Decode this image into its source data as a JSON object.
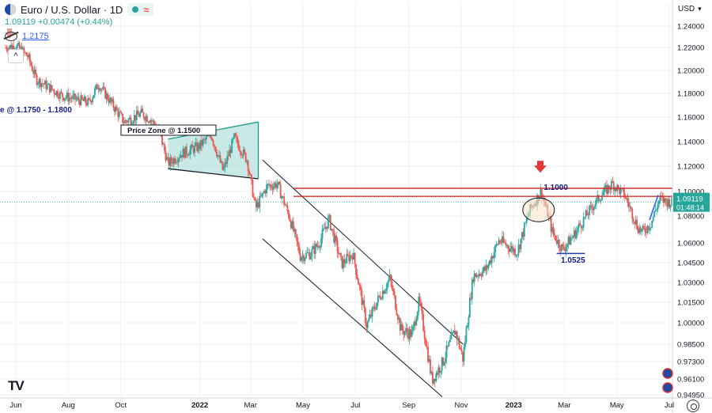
{
  "header": {
    "symbol_title": "Euro / U.S. Dollar · 1D",
    "price_line": "1.09119 +0.00474 (+0.44%)",
    "indicator_value": "1.2175",
    "currency_menu": "USD",
    "collapse_glyph": "^",
    "logo_text": "TV"
  },
  "colors": {
    "up": "#26a69a",
    "down": "#ef5350",
    "channel": "#131722",
    "zone_fill": "#b2dfdb",
    "resistance": "#d32f2f",
    "label_blue": "#131e8c",
    "last_price_bg": "#26a69a"
  },
  "chart_data": {
    "type": "candlestick",
    "title": "Euro / U.S. Dollar · 1D",
    "y_axis": {
      "ticks": [
        "1.24000",
        "1.22000",
        "1.20000",
        "1.18000",
        "1.16000",
        "1.14000",
        "1.12000",
        "1.10000",
        "1.08000",
        "1.06000",
        "1.04500",
        "1.03000",
        "1.01500",
        "1.00000",
        "0.98500",
        "0.97300",
        "0.96100",
        "0.94950"
      ],
      "tick_values": [
        1.24,
        1.22,
        1.2,
        1.18,
        1.16,
        1.14,
        1.12,
        1.1,
        1.08,
        1.06,
        1.045,
        1.03,
        1.015,
        1.0,
        0.985,
        0.973,
        0.961,
        0.9495
      ],
      "ylim": [
        0.945,
        1.25
      ]
    },
    "x_axis": {
      "ticks": [
        "Jun",
        "Aug",
        "Oct",
        "2022",
        "Mar",
        "May",
        "Jul",
        "Sep",
        "Nov",
        "2023",
        "Mar",
        "May",
        "Jul"
      ],
      "tick_dates": [
        "2021-06-01",
        "2021-08-01",
        "2021-10-01",
        "2022-01-01",
        "2022-03-01",
        "2022-05-01",
        "2022-07-01",
        "2022-09-01",
        "2022-11-01",
        "2023-01-01",
        "2023-03-01",
        "2023-05-01",
        "2023-07-01"
      ]
    },
    "price_path": [
      [
        "2021-05-20",
        1.22
      ],
      [
        "2021-06-01",
        1.222
      ],
      [
        "2021-06-15",
        1.212
      ],
      [
        "2021-06-25",
        1.192
      ],
      [
        "2021-07-10",
        1.185
      ],
      [
        "2021-07-25",
        1.178
      ],
      [
        "2021-08-10",
        1.175
      ],
      [
        "2021-08-25",
        1.172
      ],
      [
        "2021-09-05",
        1.188
      ],
      [
        "2021-09-20",
        1.172
      ],
      [
        "2021-10-05",
        1.156
      ],
      [
        "2021-10-25",
        1.163
      ],
      [
        "2021-11-05",
        1.158
      ],
      [
        "2021-11-15",
        1.148
      ],
      [
        "2021-11-25",
        1.122
      ],
      [
        "2021-12-10",
        1.13
      ],
      [
        "2021-12-31",
        1.136
      ],
      [
        "2022-01-14",
        1.146
      ],
      [
        "2022-01-28",
        1.116
      ],
      [
        "2022-02-10",
        1.143
      ],
      [
        "2022-02-25",
        1.125
      ],
      [
        "2022-03-07",
        1.086
      ],
      [
        "2022-03-20",
        1.104
      ],
      [
        "2022-04-01",
        1.106
      ],
      [
        "2022-04-15",
        1.08
      ],
      [
        "2022-04-28",
        1.05
      ],
      [
        "2022-05-10",
        1.052
      ],
      [
        "2022-05-20",
        1.06
      ],
      [
        "2022-05-31",
        1.078
      ],
      [
        "2022-06-15",
        1.044
      ],
      [
        "2022-06-28",
        1.052
      ],
      [
        "2022-07-14",
        0.998
      ],
      [
        "2022-07-28",
        1.018
      ],
      [
        "2022-08-10",
        1.033
      ],
      [
        "2022-08-23",
        0.995
      ],
      [
        "2022-09-05",
        0.992
      ],
      [
        "2022-09-13",
        1.016
      ],
      [
        "2022-09-28",
        0.96
      ],
      [
        "2022-10-10",
        0.972
      ],
      [
        "2022-10-25",
        0.995
      ],
      [
        "2022-11-03",
        0.975
      ],
      [
        "2022-11-15",
        1.035
      ],
      [
        "2022-11-30",
        1.04
      ],
      [
        "2022-12-15",
        1.062
      ],
      [
        "2023-01-05",
        1.053
      ],
      [
        "2023-01-20",
        1.085
      ],
      [
        "2023-02-02",
        1.1
      ],
      [
        "2023-02-15",
        1.068
      ],
      [
        "2023-02-27",
        1.055
      ],
      [
        "2023-03-10",
        1.064
      ],
      [
        "2023-03-20",
        1.074
      ],
      [
        "2023-04-05",
        1.09
      ],
      [
        "2023-04-14",
        1.098
      ],
      [
        "2023-04-26",
        1.106
      ],
      [
        "2023-05-10",
        1.097
      ],
      [
        "2023-05-25",
        1.072
      ],
      [
        "2023-05-31",
        1.068
      ],
      [
        "2023-06-10",
        1.075
      ],
      [
        "2023-06-20",
        1.094
      ],
      [
        "2023-06-26",
        1.092
      ],
      [
        "2023-07-05",
        1.091
      ]
    ],
    "last_price": "1.09119",
    "countdown": "01:48:14",
    "annotations": {
      "zone_top_left": "e @ 1.1750 - 1.1800",
      "price_zone": "Price Zone @ 1.1500",
      "resistance": "1.1000",
      "support": "1.0525"
    },
    "resistance_levels": [
      1.1025,
      1.096
    ],
    "grid": true
  }
}
